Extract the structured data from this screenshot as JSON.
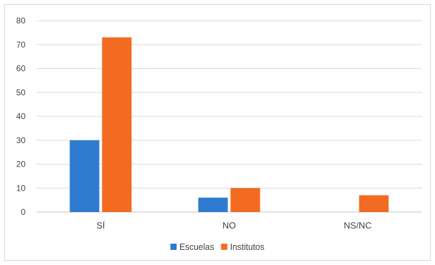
{
  "chart_data": {
    "type": "bar",
    "categories": [
      "SÍ",
      "NO",
      "NS/NC"
    ],
    "series": [
      {
        "name": "Escuelas",
        "color": "#2e7bcf",
        "values": [
          30,
          6,
          0
        ]
      },
      {
        "name": "Institutos",
        "color": "#f26b21",
        "values": [
          73,
          10,
          7
        ]
      }
    ],
    "ylim": [
      0,
      80
    ],
    "yticks": [
      0,
      10,
      20,
      30,
      40,
      50,
      60,
      70,
      80
    ],
    "grid": true,
    "legend_position": "bottom"
  }
}
